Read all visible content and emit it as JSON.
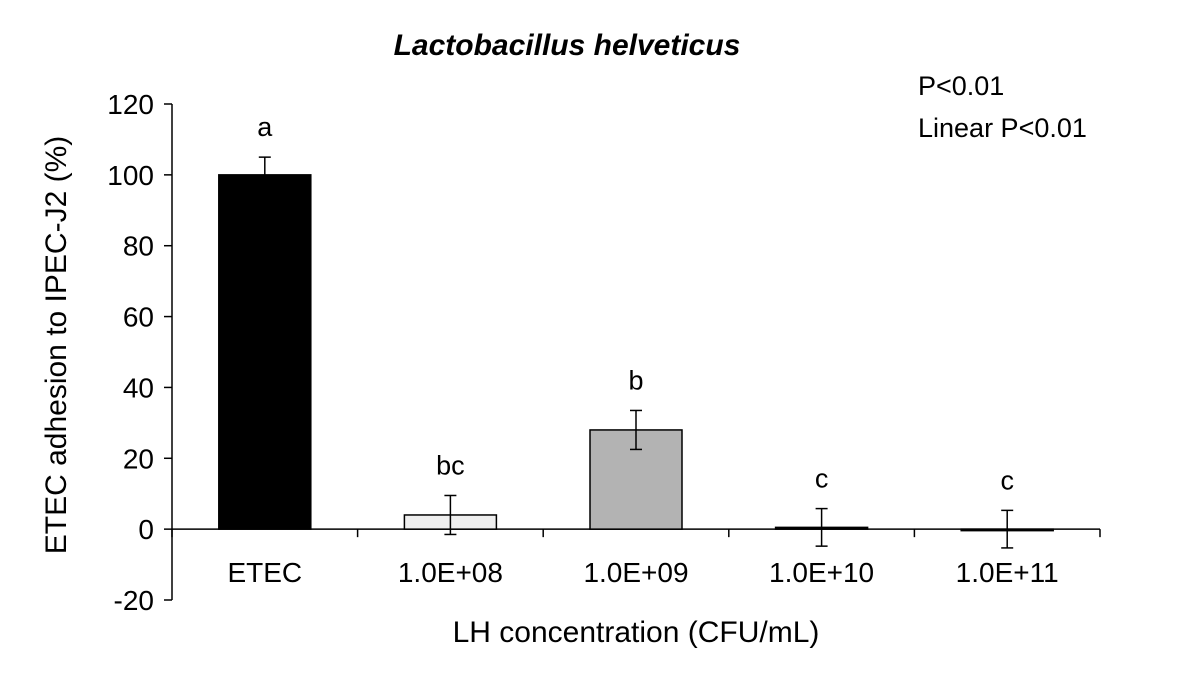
{
  "chart_data": {
    "type": "bar",
    "title": "Lactobacillus helveticus",
    "xlabel": "LH concentration (CFU/mL)",
    "ylabel": "ETEC adhesion to IPEC-J2 (%)",
    "ylim": [
      -20,
      120
    ],
    "yticks": [
      -20,
      0,
      20,
      40,
      60,
      80,
      100,
      120
    ],
    "categories": [
      "ETEC",
      "1.0E+08",
      "1.0E+09",
      "1.0E+10",
      "1.0E+11"
    ],
    "values": [
      100,
      4,
      28,
      0.5,
      0
    ],
    "errors": [
      5,
      5.5,
      5.5,
      5.3,
      5.3
    ],
    "letters": [
      "a",
      "bc",
      "b",
      "c",
      "c"
    ],
    "colors": [
      "#000000",
      "#eeeeee",
      "#b3b3b3",
      "#000000",
      "#000000"
    ],
    "annotations": [
      "P<0.01",
      "Linear P<0.01"
    ],
    "grid": false,
    "legend": "none"
  }
}
